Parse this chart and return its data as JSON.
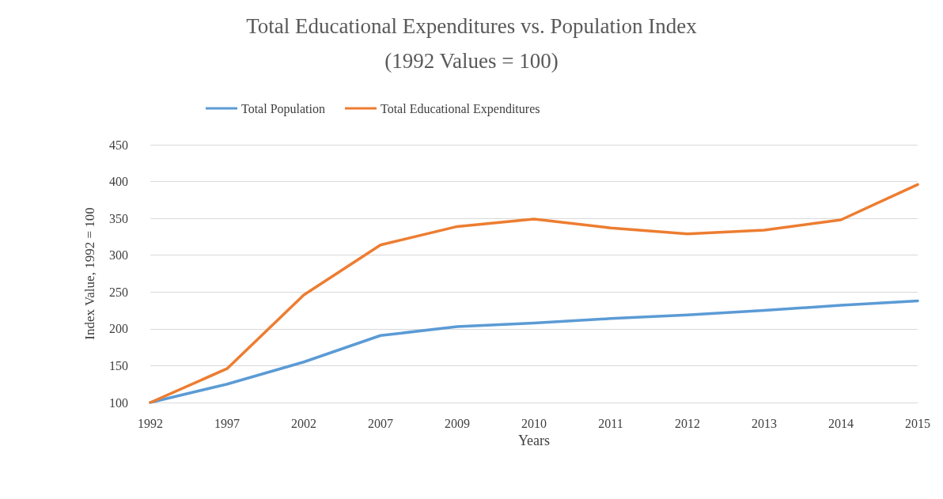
{
  "chart_data": {
    "type": "line",
    "title": "Total Educational Expenditures vs. Population Index",
    "subtitle": "(1992 Values = 100)",
    "xlabel": "Years",
    "ylabel": "Index Value, 1992 = 100",
    "categories": [
      "1992",
      "1997",
      "2002",
      "2007",
      "2009",
      "2010",
      "2011",
      "2012",
      "2013",
      "2014",
      "2015"
    ],
    "series": [
      {
        "name": "Total Population",
        "color": "#5b9bd5",
        "values": [
          100,
          125,
          155,
          191,
          203,
          208,
          214,
          219,
          225,
          232,
          238
        ]
      },
      {
        "name": "Total Educational Expenditures",
        "color": "#ed7d31",
        "values": [
          100,
          146,
          246,
          314,
          339,
          349,
          337,
          329,
          334,
          348,
          396
        ]
      }
    ],
    "ylim": [
      100,
      450
    ],
    "yticks": [
      100,
      150,
      200,
      250,
      300,
      350,
      400,
      450
    ],
    "grid": "y",
    "legend": "top left",
    "marker": "none",
    "line_style": "solid"
  }
}
